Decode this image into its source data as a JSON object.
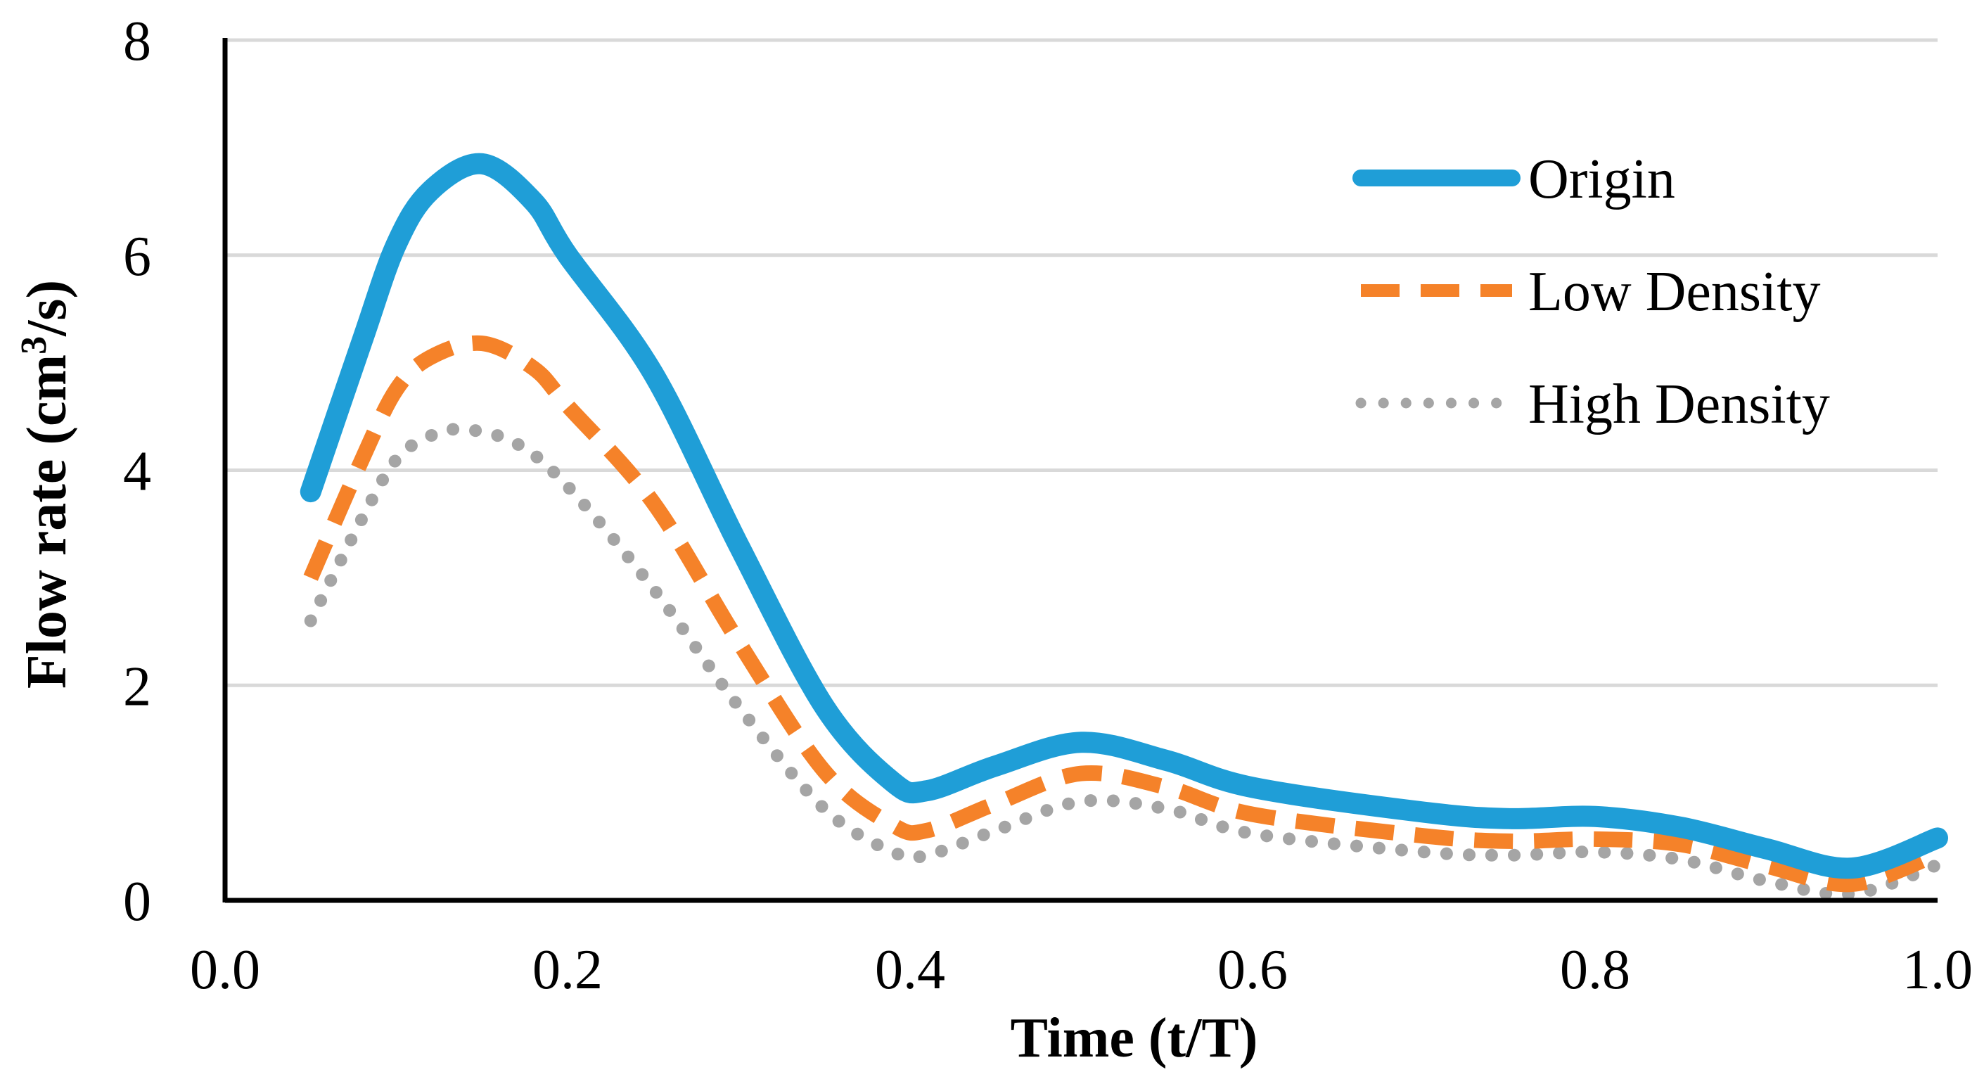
{
  "chart_data": {
    "type": "line",
    "title": "",
    "xlabel": "Time (t/T)",
    "ylabel": "Flow rate (cm3/s)",
    "ylabel_parts": {
      "before": "Flow rate (cm",
      "sup": "3",
      "after": "/s)"
    },
    "xlim": [
      0.0,
      1.0
    ],
    "ylim": [
      0,
      8
    ],
    "x_ticks": [
      0.0,
      0.2,
      0.4,
      0.6,
      0.8,
      1.0
    ],
    "x_tick_labels": [
      "0.0",
      "0.2",
      "0.4",
      "0.6",
      "0.8",
      "1.0"
    ],
    "y_ticks": [
      0,
      2,
      4,
      6,
      8
    ],
    "y_tick_labels": [
      "0",
      "2",
      "4",
      "6",
      "8"
    ],
    "grid": "horizontal",
    "legend_position": "top-right",
    "series": [
      {
        "name": "Origin",
        "color": "#1f9ed7",
        "style": "solid",
        "x": [
          0.05,
          0.08,
          0.1,
          0.12,
          0.15,
          0.18,
          0.2,
          0.25,
          0.3,
          0.35,
          0.39,
          0.41,
          0.45,
          0.5,
          0.55,
          0.6,
          0.7,
          0.75,
          0.8,
          0.85,
          0.9,
          0.95,
          1.0
        ],
        "y": [
          3.8,
          5.2,
          6.1,
          6.6,
          6.85,
          6.5,
          6.0,
          4.9,
          3.3,
          1.8,
          1.1,
          1.02,
          1.25,
          1.47,
          1.3,
          1.05,
          0.82,
          0.76,
          0.78,
          0.68,
          0.48,
          0.3,
          0.58
        ]
      },
      {
        "name": "Low Density",
        "color": "#f58229",
        "style": "dashed",
        "x": [
          0.05,
          0.08,
          0.1,
          0.12,
          0.15,
          0.18,
          0.2,
          0.25,
          0.3,
          0.35,
          0.39,
          0.41,
          0.45,
          0.5,
          0.55,
          0.6,
          0.7,
          0.75,
          0.8,
          0.85,
          0.9,
          0.95,
          1.0
        ],
        "y": [
          3.0,
          4.1,
          4.75,
          5.05,
          5.18,
          4.95,
          4.6,
          3.7,
          2.4,
          1.2,
          0.7,
          0.65,
          0.9,
          1.18,
          1.05,
          0.8,
          0.6,
          0.55,
          0.57,
          0.52,
          0.32,
          0.15,
          0.43
        ]
      },
      {
        "name": "High Density",
        "color": "#a5a5a5",
        "style": "dotted",
        "x": [
          0.05,
          0.08,
          0.1,
          0.12,
          0.14,
          0.17,
          0.2,
          0.25,
          0.3,
          0.35,
          0.39,
          0.41,
          0.45,
          0.5,
          0.55,
          0.6,
          0.7,
          0.75,
          0.8,
          0.85,
          0.9,
          0.95,
          1.0
        ],
        "y": [
          2.6,
          3.55,
          4.1,
          4.32,
          4.38,
          4.25,
          3.85,
          2.9,
          1.8,
          0.85,
          0.45,
          0.42,
          0.65,
          0.92,
          0.85,
          0.62,
          0.45,
          0.42,
          0.45,
          0.38,
          0.18,
          0.06,
          0.33
        ]
      }
    ]
  }
}
